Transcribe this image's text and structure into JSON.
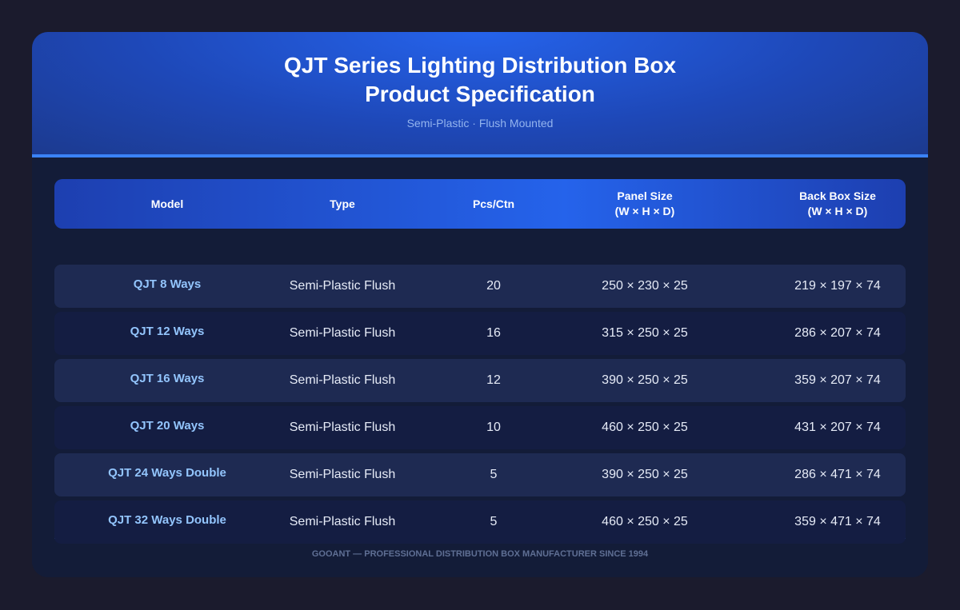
{
  "header": {
    "title": [
      "QJT Series Lighting Distribution Box",
      "Product Specification"
    ],
    "subtitle": "Semi-Plastic · Flush Mounted"
  },
  "table": {
    "columns": [
      [
        "Model"
      ],
      [
        "Type"
      ],
      [
        "Pcs/Ctn"
      ],
      [
        "Panel Size",
        "(W × H × D)"
      ],
      [
        "Back Box Size",
        "(W × H × D)"
      ]
    ],
    "rows": [
      [
        "QJT 8 Ways",
        "Semi-Plastic Flush",
        20,
        "250 × 230 × 25",
        "219 × 197 × 74"
      ],
      [
        "QJT 12 Ways",
        "Semi-Plastic Flush",
        16,
        "315 × 250 × 25",
        "286 × 207 × 74"
      ],
      [
        "QJT 16 Ways",
        "Semi-Plastic Flush",
        12,
        "390 × 250 × 25",
        "359 × 207 × 74"
      ],
      [
        "QJT 20 Ways",
        "Semi-Plastic Flush",
        10,
        "460 × 250 × 25",
        "431 × 207 × 74"
      ],
      [
        "QJT 24 Ways Double",
        "Semi-Plastic Flush",
        5,
        "390 × 250 × 25",
        "286 × 471 × 74"
      ],
      [
        "QJT 32 Ways Double",
        "Semi-Plastic Flush",
        5,
        "460 × 250 × 25",
        "359 × 471 × 74"
      ]
    ]
  },
  "footer": {
    "text": "GOOANT — PROFESSIONAL DISTRIBUTION BOX MANUFACTURER SINCE 1994"
  }
}
